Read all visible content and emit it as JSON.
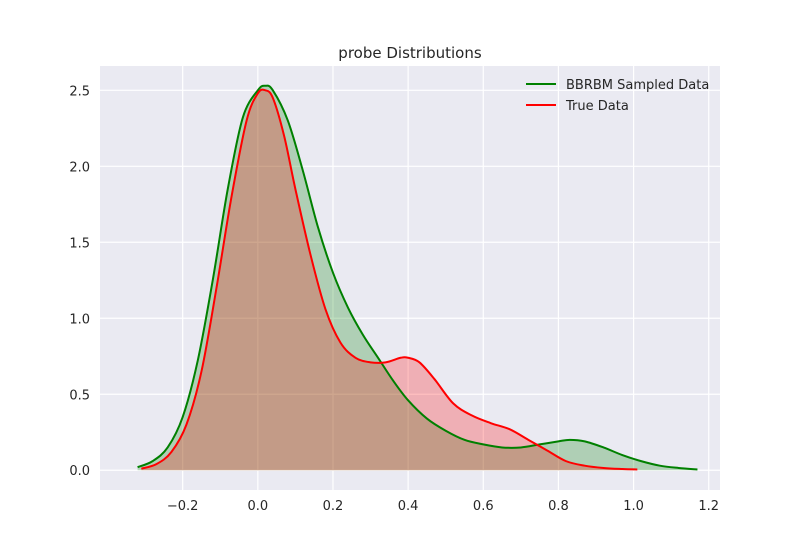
{
  "chart_data": {
    "type": "area",
    "title": "probe Distributions",
    "xlabel": "",
    "ylabel": "",
    "xlim": [
      -0.42,
      1.23
    ],
    "ylim": [
      -0.13,
      2.66
    ],
    "xticks": [
      -0.2,
      0.0,
      0.2,
      0.4,
      0.6,
      0.8,
      1.0,
      1.2
    ],
    "xtick_labels": [
      "−0.2",
      "0.0",
      "0.2",
      "0.4",
      "0.6",
      "0.8",
      "1.0",
      "1.2"
    ],
    "yticks": [
      0.0,
      0.5,
      1.0,
      1.5,
      2.0,
      2.5
    ],
    "ytick_labels": [
      "0.0",
      "0.5",
      "1.0",
      "1.5",
      "2.0",
      "2.5"
    ],
    "grid": true,
    "legend_position": "upper right",
    "series": [
      {
        "name": "BBRBM Sampled Data",
        "color": "#008000",
        "fill_color": "#008000",
        "fill_opacity": 0.25,
        "x": [
          -0.32,
          -0.28,
          -0.24,
          -0.2,
          -0.16,
          -0.12,
          -0.08,
          -0.04,
          0.0,
          0.02,
          0.04,
          0.08,
          0.12,
          0.16,
          0.2,
          0.24,
          0.28,
          0.32,
          0.36,
          0.4,
          0.45,
          0.5,
          0.55,
          0.6,
          0.65,
          0.7,
          0.75,
          0.8,
          0.83,
          0.87,
          0.92,
          0.97,
          1.02,
          1.07,
          1.12,
          1.17
        ],
        "y": [
          0.02,
          0.06,
          0.15,
          0.35,
          0.72,
          1.25,
          1.85,
          2.32,
          2.5,
          2.53,
          2.5,
          2.3,
          1.97,
          1.6,
          1.3,
          1.07,
          0.89,
          0.74,
          0.59,
          0.46,
          0.34,
          0.26,
          0.2,
          0.17,
          0.15,
          0.15,
          0.17,
          0.19,
          0.2,
          0.19,
          0.15,
          0.1,
          0.06,
          0.03,
          0.015,
          0.005
        ]
      },
      {
        "name": "True Data",
        "color": "#ff0000",
        "fill_color": "#ff0000",
        "fill_opacity": 0.25,
        "x": [
          -0.31,
          -0.27,
          -0.23,
          -0.19,
          -0.15,
          -0.11,
          -0.07,
          -0.03,
          0.0,
          0.02,
          0.04,
          0.07,
          0.1,
          0.14,
          0.18,
          0.22,
          0.26,
          0.3,
          0.34,
          0.38,
          0.4,
          0.43,
          0.47,
          0.52,
          0.57,
          0.62,
          0.67,
          0.72,
          0.77,
          0.82,
          0.87,
          0.92,
          0.97,
          1.01
        ],
        "y": [
          0.01,
          0.04,
          0.12,
          0.3,
          0.65,
          1.2,
          1.8,
          2.3,
          2.48,
          2.5,
          2.45,
          2.2,
          1.85,
          1.42,
          1.06,
          0.84,
          0.74,
          0.71,
          0.71,
          0.74,
          0.74,
          0.71,
          0.6,
          0.44,
          0.36,
          0.31,
          0.27,
          0.2,
          0.13,
          0.06,
          0.03,
          0.015,
          0.008,
          0.005
        ]
      }
    ]
  }
}
